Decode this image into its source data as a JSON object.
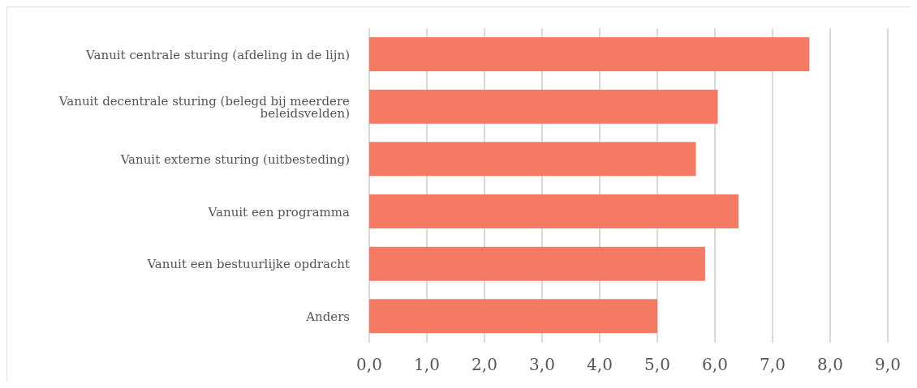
{
  "chart_data": {
    "type": "bar",
    "orientation": "horizontal",
    "categories": [
      "Vanuit centrale sturing (afdeling in de lijn)",
      "Vanuit decentrale sturing (belegd bij meerdere beleidsvelden)",
      "Vanuit externe sturing (uitbesteding)",
      "Vanuit een programma",
      "Vanuit een bestuurlijke opdracht",
      "Anders"
    ],
    "values": [
      7.64,
      6.05,
      5.67,
      6.41,
      5.83,
      5.0
    ],
    "color": "#f47a64",
    "xlim": [
      0,
      9
    ],
    "xticks": [
      {
        "value": 0,
        "label": "0,0"
      },
      {
        "value": 1,
        "label": "1,0"
      },
      {
        "value": 2,
        "label": "2,0"
      },
      {
        "value": 3,
        "label": "3,0"
      },
      {
        "value": 4,
        "label": "4,0"
      },
      {
        "value": 5,
        "label": "5,0"
      },
      {
        "value": 6,
        "label": "6,0"
      },
      {
        "value": 7,
        "label": "7,0"
      },
      {
        "value": 8,
        "label": "8,0"
      },
      {
        "value": 9,
        "label": "9,0"
      }
    ],
    "grid": "x"
  }
}
